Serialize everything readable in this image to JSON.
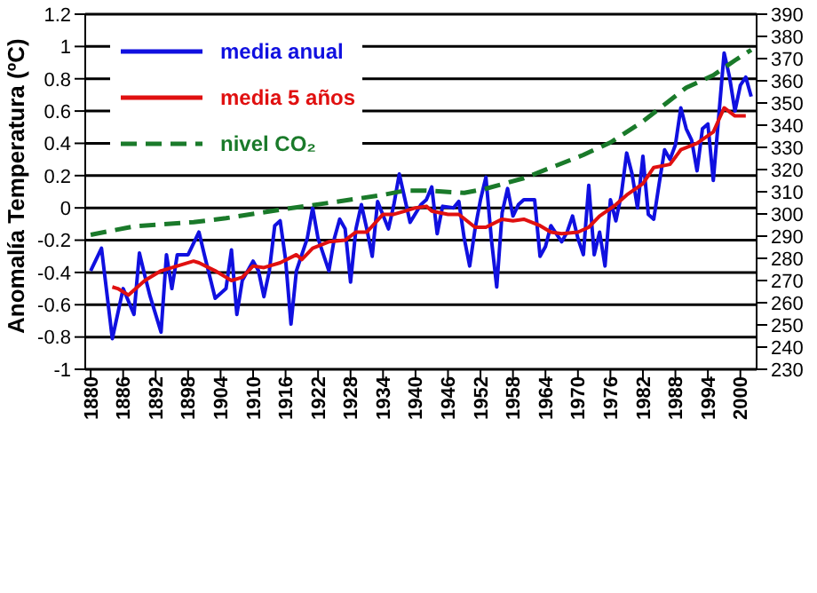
{
  "chart_data": {
    "type": "line",
    "ylabel": "Anomalía Temperatura (ºC)",
    "xlim": [
      1879,
      2003
    ],
    "xticks": [
      1880,
      1886,
      1892,
      1898,
      1904,
      1910,
      1916,
      1922,
      1928,
      1934,
      1940,
      1946,
      1952,
      1958,
      1964,
      1970,
      1976,
      1982,
      1988,
      1994,
      2000
    ],
    "ylim": [
      -1,
      1.2
    ],
    "yticks": [
      -1,
      -0.8,
      -0.6,
      -0.4,
      -0.2,
      0,
      0.2,
      0.4,
      0.6,
      0.8,
      1,
      1.2
    ],
    "y2lim": [
      230,
      390
    ],
    "y2ticks": [
      230,
      240,
      250,
      260,
      270,
      280,
      290,
      300,
      310,
      320,
      330,
      340,
      350,
      360,
      370,
      380,
      390
    ],
    "grid": "y",
    "legend": "top left",
    "marker": "none",
    "series": [
      {
        "name": "media anual",
        "color": "#1010e0",
        "x": [
          1880,
          1882,
          1884,
          1886,
          1888,
          1889,
          1890,
          1891,
          1893,
          1894,
          1895,
          1896,
          1898,
          1900,
          1901,
          1903,
          1905,
          1906,
          1907,
          1908,
          1910,
          1911,
          1912,
          1913,
          1914,
          1915,
          1916,
          1917,
          1918,
          1919,
          1920,
          1921,
          1922,
          1924,
          1925,
          1926,
          1927,
          1928,
          1929,
          1930,
          1931,
          1932,
          1933,
          1935,
          1936,
          1937,
          1938,
          1939,
          1941,
          1942,
          1943,
          1944,
          1945,
          1947,
          1948,
          1949,
          1950,
          1951,
          1952,
          1953,
          1954,
          1955,
          1956,
          1957,
          1958,
          1959,
          1960,
          1961,
          1962,
          1963,
          1964,
          1965,
          1967,
          1968,
          1969,
          1970,
          1971,
          1972,
          1973,
          1974,
          1975,
          1976,
          1977,
          1978,
          1979,
          1980,
          1981,
          1982,
          1983,
          1984,
          1985,
          1986,
          1987,
          1988,
          1989,
          1990,
          1991,
          1992,
          1993,
          1994,
          1995,
          1997,
          1998,
          1999,
          2000,
          2001,
          2002
        ],
        "values": [
          -0.39,
          -0.25,
          -0.81,
          -0.5,
          -0.66,
          -0.28,
          -0.42,
          -0.55,
          -0.77,
          -0.29,
          -0.5,
          -0.29,
          -0.29,
          -0.15,
          -0.29,
          -0.56,
          -0.5,
          -0.26,
          -0.66,
          -0.45,
          -0.33,
          -0.39,
          -0.55,
          -0.39,
          -0.11,
          -0.08,
          -0.32,
          -0.72,
          -0.39,
          -0.29,
          -0.19,
          0,
          -0.19,
          -0.39,
          -0.19,
          -0.07,
          -0.13,
          -0.46,
          -0.13,
          0.02,
          -0.13,
          -0.3,
          0.04,
          -0.13,
          0.02,
          0.21,
          0.06,
          -0.09,
          0.02,
          0.05,
          0.13,
          -0.16,
          0.01,
          0,
          0.04,
          -0.19,
          -0.36,
          -0.13,
          0.05,
          0.19,
          -0.19,
          -0.49,
          -0.03,
          0.12,
          -0.05,
          0.02,
          0.05,
          0.05,
          0.05,
          -0.3,
          -0.24,
          -0.11,
          -0.21,
          -0.15,
          -0.05,
          -0.19,
          -0.29,
          0.14,
          -0.29,
          -0.15,
          -0.36,
          0.05,
          -0.08,
          0.08,
          0.34,
          0.21,
          0,
          0.32,
          -0.04,
          -0.07,
          0.15,
          0.36,
          0.3,
          0.39,
          0.62,
          0.49,
          0.42,
          0.23,
          0.49,
          0.52,
          0.17,
          0.96,
          0.81,
          0.6,
          0.76,
          0.81,
          0.69
        ]
      },
      {
        "name": "media 5 años",
        "color": "#e01010",
        "x": [
          1884,
          1885,
          1887,
          1890,
          1893,
          1896,
          1899,
          1900,
          1903,
          1906,
          1908,
          1910,
          1912,
          1915,
          1918,
          1919,
          1921,
          1924,
          1927,
          1929,
          1931,
          1934,
          1936,
          1938,
          1940,
          1942,
          1943,
          1946,
          1948,
          1951,
          1953,
          1956,
          1958,
          1960,
          1963,
          1965,
          1967,
          1970,
          1972,
          1974,
          1977,
          1979,
          1982,
          1984,
          1987,
          1989,
          1992,
          1995,
          1997,
          1999,
          2001
        ],
        "values": [
          -0.49,
          -0.5,
          -0.54,
          -0.45,
          -0.39,
          -0.36,
          -0.33,
          -0.34,
          -0.39,
          -0.45,
          -0.43,
          -0.36,
          -0.37,
          -0.34,
          -0.29,
          -0.32,
          -0.25,
          -0.21,
          -0.2,
          -0.15,
          -0.15,
          -0.04,
          -0.04,
          -0.02,
          0,
          0.01,
          -0.02,
          -0.04,
          -0.04,
          -0.12,
          -0.12,
          -0.07,
          -0.08,
          -0.07,
          -0.11,
          -0.15,
          -0.16,
          -0.15,
          -0.12,
          -0.05,
          0.02,
          0.08,
          0.15,
          0.25,
          0.27,
          0.36,
          0.4,
          0.47,
          0.62,
          0.57,
          0.57
        ]
      },
      {
        "name": "nivel CO₂",
        "color": "#1a7a2a",
        "axis": "y2",
        "line_style": "dashed",
        "x": [
          1880,
          1888,
          1899,
          1905,
          1915,
          1926,
          1934,
          1938,
          1942,
          1949,
          1953,
          1960,
          1966,
          1971,
          1976,
          1982,
          1986,
          1990,
          1995,
          1999,
          2002
        ],
        "values": [
          290.6,
          294.4,
          296.3,
          298.1,
          301.9,
          305.7,
          308.6,
          310.5,
          310.5,
          309.5,
          311.4,
          316.1,
          321.8,
          326.6,
          332.2,
          341.7,
          349.3,
          356.9,
          362.5,
          369.2,
          373.9
        ]
      }
    ]
  }
}
